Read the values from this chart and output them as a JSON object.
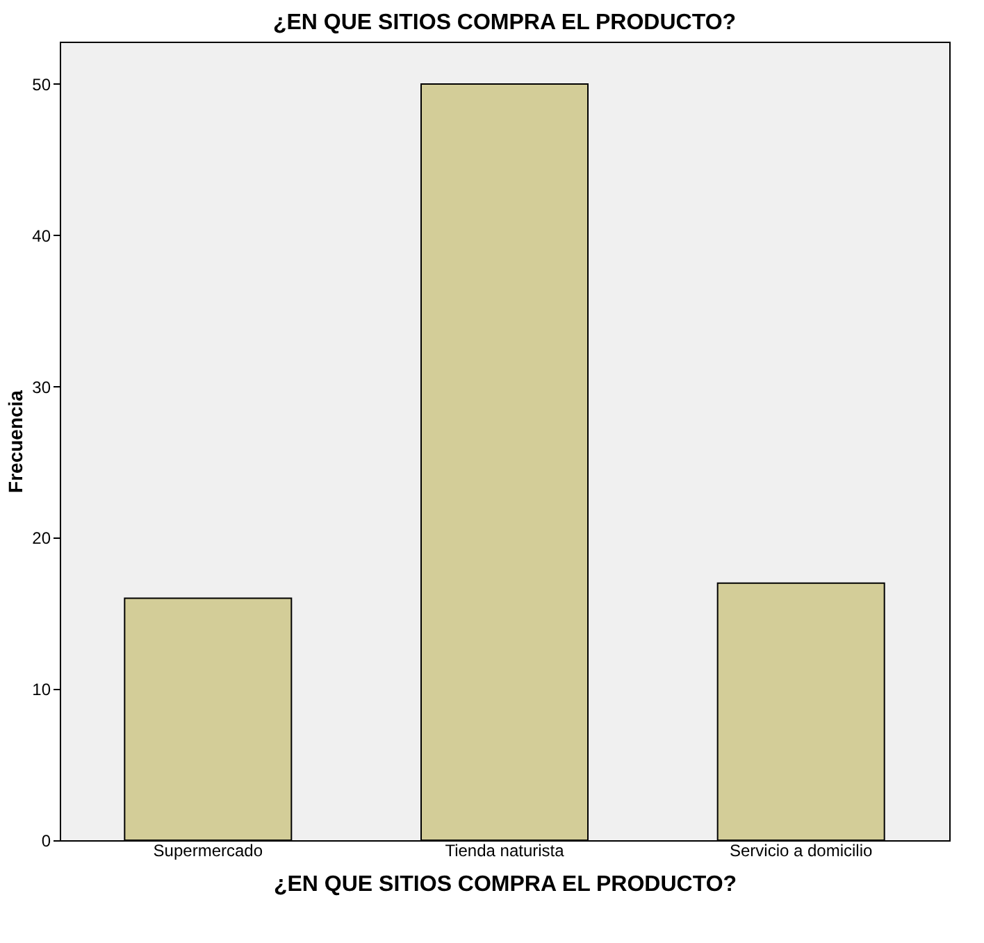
{
  "chart_data": {
    "type": "bar",
    "title": "¿EN QUE SITIOS COMPRA EL PRODUCTO?",
    "xlabel": "¿EN QUE SITIOS COMPRA EL PRODUCTO?",
    "ylabel": "Frecuencia",
    "categories": [
      "Supermercado",
      "Tienda naturista",
      "Servicio a domicilio"
    ],
    "values": [
      16,
      50,
      17
    ],
    "color": "#d3cd98",
    "ylim": [
      0,
      52.8
    ],
    "yticks": [
      0,
      10,
      20,
      30,
      40,
      50
    ],
    "grid": false
  }
}
